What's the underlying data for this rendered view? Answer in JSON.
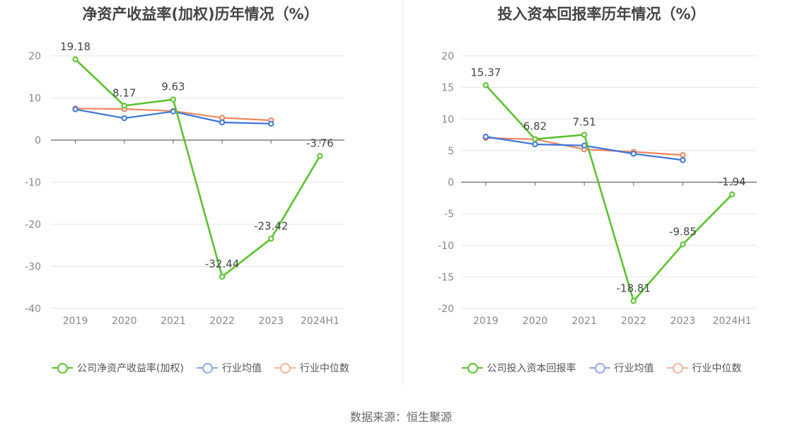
{
  "source_text": "数据来源：恒生聚源",
  "colors": {
    "company": "#5cc230",
    "industry_avg": "#3d76d8",
    "industry_median": "#ee8660",
    "legend_avg": "#8fa8e8",
    "legend_median": "#f2b59e"
  },
  "chart_data": [
    {
      "type": "line",
      "title": "净资产收益率(加权)历年情况（%）",
      "categories": [
        "2019",
        "2020",
        "2021",
        "2022",
        "2023",
        "2024H1"
      ],
      "ylim": [
        -40,
        20
      ],
      "yticks": [
        20,
        10,
        0,
        -10,
        -20,
        -30,
        -40
      ],
      "ytick_labels": [
        "20",
        "10",
        "0",
        "-10",
        "-20",
        "-30",
        "-40"
      ],
      "grid": true,
      "legend_position": "bottom",
      "series": [
        {
          "name": "公司净资产收益率(加权)",
          "values": [
            19.18,
            8.17,
            9.63,
            -32.44,
            -23.42,
            -3.76
          ],
          "labels": [
            "19.18",
            "8.17",
            "9.63",
            "-32.44",
            "-23.42",
            "-3.76"
          ]
        },
        {
          "name": "行业均值",
          "values": [
            7.3,
            5.2,
            6.8,
            4.2,
            3.9,
            null
          ]
        },
        {
          "name": "行业中位数",
          "values": [
            7.5,
            7.4,
            6.9,
            5.3,
            4.7,
            null
          ]
        }
      ]
    },
    {
      "type": "line",
      "title": "投入资本回报率历年情况（%）",
      "categories": [
        "2019",
        "2020",
        "2021",
        "2022",
        "2023",
        "2024H1"
      ],
      "ylim": [
        -20,
        20
      ],
      "yticks": [
        20,
        15,
        10,
        5,
        0,
        -5,
        -10,
        -15,
        -20
      ],
      "ytick_labels": [
        "20",
        "15",
        "10",
        "5",
        "0",
        "-5",
        "-10",
        "-15",
        "-20"
      ],
      "grid": true,
      "legend_position": "bottom",
      "series": [
        {
          "name": "公司投入资本回报率",
          "values": [
            15.37,
            6.82,
            7.51,
            -18.81,
            -9.85,
            -1.94
          ],
          "labels": [
            "15.37",
            "6.82",
            "7.51",
            "-18.81",
            "-9.85",
            "-1.94"
          ]
        },
        {
          "name": "行业均值",
          "values": [
            7.2,
            6.0,
            5.8,
            4.5,
            3.5,
            null
          ]
        },
        {
          "name": "行业中位数",
          "values": [
            7.0,
            6.8,
            5.2,
            4.8,
            4.3,
            null
          ]
        }
      ]
    }
  ]
}
